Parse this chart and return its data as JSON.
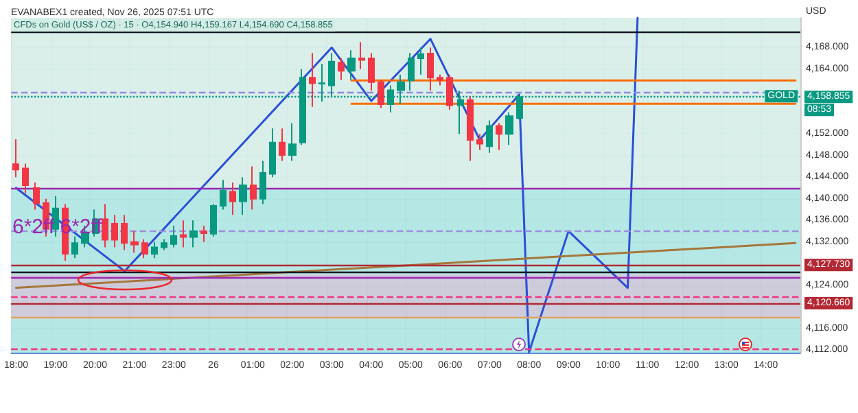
{
  "chart_data": {
    "type": "candlestick",
    "title": "CFDs on Gold (US$ / OZ) · 15 · O4,154.940 H4,159.167 L4,154.690 C4,158.855",
    "subtitle": "EVANABEX1 created, Nov 26, 2025 07:51 UTC",
    "ylabel": "USD",
    "categories": [
      "18:00",
      null,
      null,
      null,
      "19:00",
      null,
      null,
      null,
      "20:00",
      null,
      null,
      null,
      "21:00",
      null,
      null,
      null,
      "23:00",
      null,
      null,
      null,
      "26",
      null,
      null,
      null,
      "01:00",
      null,
      null,
      null,
      "02:00",
      null,
      null,
      null,
      "03:00",
      null,
      null,
      null,
      "04:00",
      null,
      null,
      null,
      "05:00",
      null,
      null,
      null,
      "06:00",
      null,
      null,
      null,
      "07:00",
      null,
      null,
      null,
      "08:00",
      null,
      null,
      null,
      "09:00",
      null,
      null,
      null,
      "10:00",
      null,
      null,
      null,
      "11:00",
      null,
      null,
      null,
      "12:00",
      null,
      null,
      null,
      "13:00",
      null,
      null,
      null,
      "14:00",
      null,
      null,
      null
    ],
    "ylim": [
      4111.5,
      4173.5
    ],
    "yticks": [
      {
        "value": 4112,
        "label": "4,112.000"
      },
      {
        "value": 4116,
        "label": "4,116.000"
      },
      {
        "value": 4124,
        "label": "4,124.000"
      },
      {
        "value": 4132,
        "label": "4,132.000"
      },
      {
        "value": 4136,
        "label": "4,136.000"
      },
      {
        "value": 4140,
        "label": "4,140.000"
      },
      {
        "value": 4144,
        "label": "4,144.000"
      },
      {
        "value": 4148,
        "label": "4,148.000"
      },
      {
        "value": 4152,
        "label": "4,152.000"
      },
      {
        "value": 4164,
        "label": "4,164.000"
      },
      {
        "value": 4168,
        "label": "4,168.000"
      }
    ],
    "grid": true,
    "marker": "none",
    "series": [
      {
        "ohlc": [
          [
            4146.4,
            4151,
            4144,
            4145.4
          ],
          [
            4145.6,
            4146.5,
            4141,
            4142.5
          ],
          [
            4142,
            4143,
            4138,
            4139.2
          ],
          [
            4139.2,
            4140,
            4133,
            4134.4
          ],
          [
            4134.4,
            4140.5,
            4133,
            4138.2
          ],
          [
            4138.2,
            4139,
            4128.5,
            4129.8
          ],
          [
            4129.8,
            4133,
            4129,
            4131.8
          ],
          [
            4131.8,
            4135,
            4131,
            4133.6
          ],
          [
            4133.6,
            4138,
            4133,
            4136.2
          ],
          [
            4136.2,
            4139,
            4131,
            4132.4
          ],
          [
            4135.4,
            4137,
            4131,
            4132.4
          ],
          [
            4135.4,
            4137,
            4130.5,
            4131.8
          ],
          [
            4132,
            4134,
            4130,
            4131.5
          ],
          [
            4131.8,
            4132.5,
            4129,
            4129.8
          ],
          [
            4129.8,
            4132,
            4129,
            4131
          ],
          [
            4131,
            4132.5,
            4130.5,
            4131.8
          ],
          [
            4131.6,
            4135,
            4131,
            4133.1
          ],
          [
            4133.3,
            4136,
            4131,
            4132.9
          ],
          [
            4132.9,
            4136,
            4131,
            4134
          ],
          [
            4134,
            4135,
            4132,
            4133.6
          ],
          [
            4133.5,
            4139,
            4133,
            4138.7
          ],
          [
            4138.7,
            4143.5,
            4138,
            4141.5
          ],
          [
            4141.3,
            4143,
            4137,
            4139.5
          ],
          [
            4139.5,
            4144,
            4137,
            4142.5
          ],
          [
            4142.5,
            4146,
            4138,
            4140
          ],
          [
            4140,
            4147,
            4139,
            4144.8
          ],
          [
            4144.6,
            4153,
            4144,
            4150.4
          ],
          [
            4150.4,
            4153,
            4147,
            4148.1
          ],
          [
            4148.1,
            4154,
            4147,
            4150.1
          ],
          [
            4150.4,
            4164,
            4150,
            4162.4
          ],
          [
            4162.4,
            4167,
            4157,
            4161.4
          ],
          [
            4161.3,
            4165,
            4158,
            4161.4
          ],
          [
            4161,
            4167,
            4159,
            4165.4
          ],
          [
            4165.2,
            4166,
            4162,
            4163.7
          ],
          [
            4163.7,
            4167.5,
            4162,
            4166
          ],
          [
            4166,
            4169,
            4164,
            4165.7
          ],
          [
            4166,
            4167,
            4160,
            4161.6
          ],
          [
            4161.6,
            4162,
            4156.8,
            4157.5
          ],
          [
            4157.5,
            4161,
            4156,
            4160.1
          ],
          [
            4160.1,
            4163,
            4157.5,
            4161.6
          ],
          [
            4161.9,
            4167,
            4160,
            4166
          ],
          [
            4166,
            4168,
            4163,
            4166.8
          ],
          [
            4166.9,
            4168,
            4160,
            4162.4
          ],
          [
            4162.4,
            4163,
            4161,
            4162
          ],
          [
            4162.4,
            4163,
            4156.5,
            4157.3
          ],
          [
            4157.3,
            4160,
            4152,
            4158.3
          ],
          [
            4158.3,
            4159,
            4147,
            4150.9
          ],
          [
            4150.9,
            4152,
            4149,
            4150.2
          ],
          [
            4149.7,
            4154.5,
            4148.5,
            4153.5
          ],
          [
            4153.5,
            4154,
            4149,
            4152
          ],
          [
            4152,
            4156,
            4150,
            4155.3
          ],
          [
            4154.94,
            4159.167,
            4154.69,
            4158.855
          ],
          null,
          null,
          null,
          null,
          null,
          null,
          null,
          null,
          null,
          null,
          null,
          null,
          null,
          null,
          null,
          null,
          null,
          null,
          null,
          null,
          null,
          null,
          null,
          null,
          null,
          null,
          null,
          null
        ],
        "colors": [
          "#f23645",
          "#f23645",
          "#f23645",
          "#f23645",
          "#089981",
          "#f23645",
          "#089981",
          "#089981",
          "#089981",
          "#f23645",
          "#f23645",
          "#f23645",
          "#f23645",
          "#f23645",
          "#089981",
          "#089981",
          "#089981",
          "#f23645",
          "#089981",
          "#f23645",
          "#089981",
          "#089981",
          "#f23645",
          "#089981",
          "#f23645",
          "#089981",
          "#089981",
          "#f23645",
          "#089981",
          "#089981",
          "#f23645",
          "#089981",
          "#089981",
          "#f23645",
          "#089981",
          "#f23645",
          "#f23645",
          "#f23645",
          "#089981",
          "#089981",
          "#089981",
          "#089981",
          "#f23645",
          "#f23645",
          "#f23645",
          "#089981",
          "#f23645",
          "#f23645",
          "#089981",
          "#f23645",
          "#089981",
          "#089981",
          null,
          null,
          null,
          null,
          null,
          null,
          null,
          null,
          null,
          null,
          null,
          null,
          null,
          null,
          null,
          null,
          null,
          null,
          null,
          null,
          null,
          null,
          null,
          null,
          null,
          null,
          null,
          null
        ]
      },
      {
        "type": "line",
        "color": "#2a4fd6",
        "values": [
          4142,
          null,
          null,
          null,
          null,
          null,
          null,
          null,
          null,
          null,
          null,
          4126.6,
          null,
          null,
          null,
          null,
          null,
          null,
          null,
          null,
          null,
          null,
          null,
          null,
          null,
          null,
          null,
          null,
          null,
          null,
          null,
          null,
          4168,
          null,
          null,
          null,
          4158.1,
          null,
          null,
          null,
          null,
          null,
          4169.6,
          null,
          null,
          null,
          null,
          4150.9,
          null,
          null,
          null,
          4159.3,
          4111.6,
          null,
          null,
          null,
          4134,
          null,
          null,
          null,
          null,
          null,
          4123.5,
          4173.5,
          null,
          null,
          null,
          null,
          null,
          null,
          null,
          null,
          null,
          null,
          null,
          null,
          null,
          null,
          null,
          null
        ]
      },
      {
        "type": "line",
        "color": "#a5773a",
        "values": [
          4123.5,
          null,
          null,
          null,
          null,
          null,
          null,
          null,
          null,
          null,
          null,
          null,
          null,
          null,
          null,
          null,
          null,
          null,
          null,
          null,
          null,
          null,
          null,
          null,
          null,
          null,
          null,
          null,
          null,
          null,
          null,
          null,
          null,
          null,
          null,
          null,
          null,
          null,
          null,
          null,
          null,
          null,
          null,
          null,
          null,
          null,
          null,
          null,
          null,
          null,
          null,
          null,
          null,
          null,
          null,
          null,
          null,
          null,
          null,
          null,
          null,
          null,
          null,
          null,
          null,
          null,
          null,
          null,
          null,
          null,
          null,
          null,
          null,
          null,
          null,
          null,
          null,
          null,
          null,
          4131.8
        ]
      },
      {
        "type": "line",
        "color": "#ff6d00",
        "values": [
          null,
          null,
          null,
          null,
          null,
          null,
          null,
          null,
          null,
          null,
          null,
          null,
          null,
          null,
          null,
          null,
          null,
          null,
          null,
          null,
          null,
          null,
          null,
          null,
          null,
          null,
          null,
          null,
          null,
          null,
          null,
          null,
          null,
          null,
          4161.9,
          null,
          null,
          null,
          null,
          null,
          null,
          null,
          null,
          null,
          null,
          null,
          null,
          null,
          null,
          null,
          null,
          null,
          null,
          null,
          null,
          null,
          null,
          null,
          null,
          null,
          null,
          null,
          null,
          null,
          null,
          null,
          null,
          null,
          null,
          null,
          null,
          null,
          null,
          null,
          null,
          null,
          null,
          null,
          null,
          4161.9
        ]
      },
      {
        "type": "line",
        "color": "#ff6d00",
        "values": [
          null,
          null,
          null,
          null,
          null,
          null,
          null,
          null,
          null,
          null,
          null,
          null,
          null,
          null,
          null,
          null,
          null,
          null,
          null,
          null,
          null,
          null,
          null,
          null,
          null,
          null,
          null,
          null,
          null,
          null,
          null,
          null,
          null,
          null,
          4157.6,
          null,
          null,
          null,
          null,
          null,
          null,
          null,
          null,
          null,
          null,
          null,
          null,
          null,
          null,
          null,
          null,
          null,
          null,
          null,
          null,
          null,
          null,
          null,
          null,
          null,
          null,
          null,
          null,
          null,
          null,
          null,
          null,
          null,
          null,
          null,
          null,
          null,
          null,
          null,
          null,
          null,
          null,
          null,
          null,
          4157.6
        ]
      }
    ],
    "bands": [
      {
        "axis": "y",
        "from": 4142,
        "to": 4173.5,
        "color": "#d3ece6"
      },
      {
        "axis": "y",
        "from": 4126,
        "to": 4142,
        "color": "#a8e3e1"
      },
      {
        "axis": "y",
        "from": 4117.8,
        "to": 4126,
        "color": "#c6c3d4"
      },
      {
        "axis": "y",
        "from": 4111.5,
        "to": 4117.8,
        "color": "#a8e3e1"
      }
    ],
    "ref_lines": [
      {
        "axis": "y",
        "value": 4171,
        "color": "#131722",
        "line_style": "solid"
      },
      {
        "axis": "y",
        "value": 4142,
        "color": "#9c27b0",
        "line_style": "solid"
      },
      {
        "axis": "y",
        "value": 4159.7,
        "color": "#8c8ce0",
        "line_style": "dashed"
      },
      {
        "axis": "y",
        "value": 4158.855,
        "label": "4,158.855",
        "color": "#089981",
        "line_style": "dotted"
      },
      {
        "axis": "y",
        "value": 4134,
        "color": "#9c8fe0",
        "line_style": "dashed"
      },
      {
        "axis": "y",
        "value": 4127.73,
        "label": "4,127.730",
        "color": "#b22833",
        "line_style": "solid"
      },
      {
        "axis": "y",
        "value": 4126.4,
        "color": "#131722",
        "line_style": "solid"
      },
      {
        "axis": "y",
        "value": 4125.5,
        "color": "#9c27b0",
        "line_style": "solid"
      },
      {
        "axis": "y",
        "value": 4121.9,
        "color": "#f23680",
        "line_style": "dashed"
      },
      {
        "axis": "y",
        "value": 4120.66,
        "label": "4,120.660",
        "color": "#b22833",
        "line_style": "solid"
      },
      {
        "axis": "y",
        "value": 4118,
        "color": "#e0a060",
        "line_style": "solid"
      },
      {
        "axis": "y",
        "value": 4112.3,
        "color": "#f23680",
        "line_style": "dashed"
      }
    ],
    "annotations": [
      "6*2ff 6*2ff",
      {
        "text": "GOLD",
        "y": 4158.855
      },
      "08:53"
    ]
  }
}
